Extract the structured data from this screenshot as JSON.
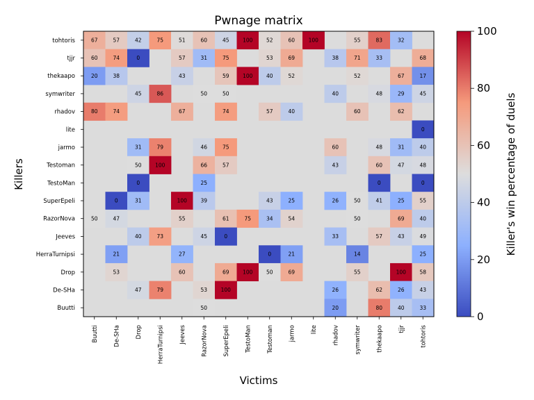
{
  "chart_data": {
    "type": "heatmap",
    "title": "Pwnage matrix",
    "xlabel": "Victims",
    "ylabel": "Killers",
    "colorbar_label": "Killer's win percentage of duels",
    "colorbar_ticks": [
      0,
      20,
      40,
      60,
      80,
      100
    ],
    "vmin": 0,
    "vmax": 100,
    "colormap": "coolwarm",
    "missing_color": "#dcdcdc",
    "x_labels": [
      "Buutti",
      "De-SHa",
      "Drop",
      "HerraTurnipsi",
      "Jeeves",
      "RazorNova",
      "SuperEpeli",
      "TestoMan",
      "Testoman",
      "jarmo",
      "lite",
      "rhadov",
      "symwriter",
      "thekaapo",
      "tjjr",
      "tohtoris"
    ],
    "y_labels": [
      "tohtoris",
      "tjjr",
      "thekaapo",
      "symwriter",
      "rhadov",
      "lite",
      "jarmo",
      "Testoman",
      "TestoMan",
      "SuperEpeli",
      "RazorNova",
      "Jeeves",
      "HerraTurnipsi",
      "Drop",
      "De-SHa",
      "Buutti"
    ],
    "values": [
      [
        67,
        57,
        42,
        75,
        51,
        60,
        45,
        100,
        52,
        60,
        100,
        null,
        55,
        83,
        32,
        null
      ],
      [
        60,
        74,
        0,
        null,
        57,
        31,
        75,
        null,
        53,
        69,
        null,
        38,
        71,
        33,
        null,
        68
      ],
      [
        20,
        38,
        null,
        null,
        43,
        null,
        59,
        100,
        40,
        52,
        null,
        null,
        52,
        null,
        67,
        17
      ],
      [
        null,
        null,
        45,
        86,
        null,
        50,
        50,
        null,
        null,
        null,
        null,
        40,
        null,
        48,
        29,
        45
      ],
      [
        80,
        74,
        null,
        null,
        67,
        null,
        74,
        null,
        57,
        40,
        null,
        null,
        60,
        null,
        62,
        null
      ],
      [
        null,
        null,
        null,
        null,
        null,
        null,
        null,
        null,
        null,
        null,
        null,
        null,
        null,
        null,
        null,
        0
      ],
      [
        null,
        null,
        31,
        79,
        null,
        46,
        75,
        null,
        null,
        null,
        null,
        60,
        null,
        48,
        31,
        40
      ],
      [
        null,
        null,
        50,
        100,
        null,
        66,
        57,
        null,
        null,
        null,
        null,
        43,
        null,
        60,
        47,
        48
      ],
      [
        null,
        null,
        0,
        null,
        null,
        25,
        null,
        null,
        null,
        null,
        null,
        null,
        null,
        0,
        null,
        0
      ],
      [
        null,
        0,
        31,
        null,
        100,
        39,
        null,
        null,
        43,
        25,
        null,
        26,
        50,
        41,
        25,
        55
      ],
      [
        50,
        47,
        null,
        null,
        55,
        null,
        61,
        75,
        34,
        54,
        null,
        null,
        50,
        null,
        69,
        40
      ],
      [
        null,
        null,
        40,
        73,
        null,
        45,
        0,
        null,
        null,
        null,
        null,
        33,
        null,
        57,
        43,
        49
      ],
      [
        null,
        21,
        null,
        null,
        27,
        null,
        null,
        null,
        0,
        21,
        null,
        null,
        14,
        null,
        null,
        25
      ],
      [
        null,
        53,
        null,
        null,
        60,
        null,
        69,
        100,
        50,
        69,
        null,
        null,
        55,
        null,
        100,
        58
      ],
      [
        null,
        null,
        47,
        79,
        null,
        53,
        100,
        null,
        null,
        null,
        null,
        26,
        null,
        62,
        26,
        43
      ],
      [
        null,
        null,
        null,
        null,
        null,
        50,
        null,
        null,
        null,
        null,
        null,
        20,
        null,
        80,
        40,
        33
      ]
    ]
  }
}
